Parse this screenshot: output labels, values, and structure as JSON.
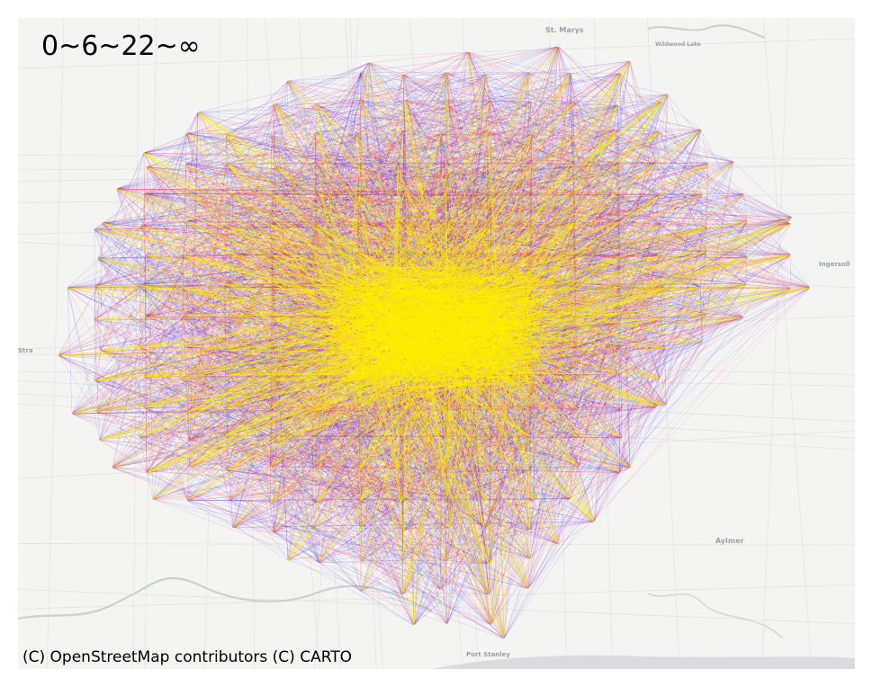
{
  "map": {
    "legend_text": "0~6~22~∞",
    "attribution": "(C) OpenStreetMap contributors (C) CARTO",
    "place_labels": {
      "st_marys": "St. Marys",
      "wildwood_lake": "Wildwood Lake",
      "ingersoll": "Ingersoll",
      "stratford": "Stra",
      "aylmer": "Aylmer",
      "port_stanley": "Port Stanley"
    },
    "edge_classes": [
      {
        "range": "0~6",
        "color": "#1f1fff"
      },
      {
        "range": "6~22",
        "color": "#ff1f3a"
      },
      {
        "range": "22~∞",
        "color": "#ffee00"
      }
    ],
    "basemap_colors": {
      "land": "#f4f5f3",
      "water": "#d8dcde",
      "roads": "#e2e4e2",
      "parks": "#e6ece4"
    }
  }
}
